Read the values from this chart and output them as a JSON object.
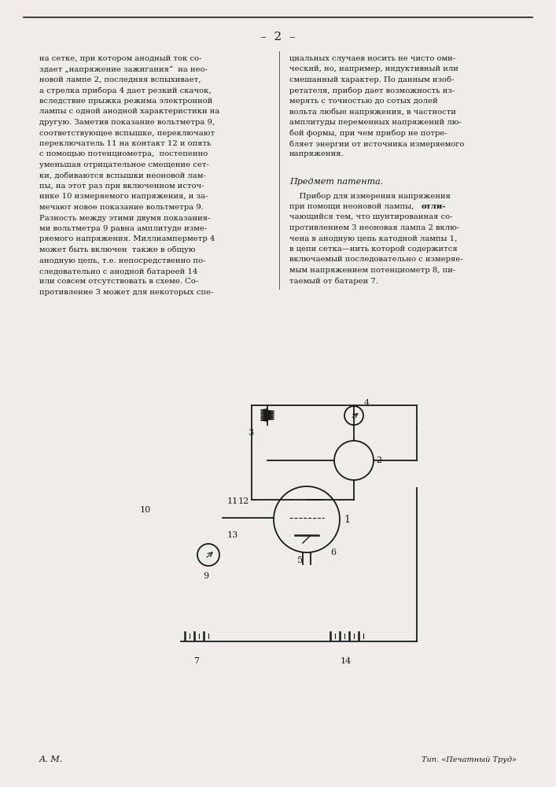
{
  "page_number": "2",
  "background_color": "#f0ede8",
  "text_color": "#1a1a1a",
  "left_column_text": [
    "на сетке, при котором анодный ток со-",
    "здает „напряжение зажигания“  на нео-",
    "новой лампе 2, последняя вспыхивает,",
    "а стрелка прибора 4 дает резкий скачок,",
    "вследствие прыжка режима электронной",
    "лампы с одной анодной характеристики на",
    "другую. Заметив показание вольтметра 9,",
    "соответствующее вспышке, переключают",
    "переключатель 11 на контакт 12 и опять",
    "с помощью потенциометра,  постепенно",
    "уменьшая отрицательное смещение сет-",
    "ки, добиваются вспышки неоновой лам-",
    "пы, на этот раз при включенном источ-",
    "нике 10 измеряемого напряжения, и за-",
    "мечают новое показание вольтметра 9.",
    "Разность между этими двумя показания-",
    "ми вольтметра 9 равна амплитуде изме-",
    "ряемого напряжения. Миллиамперметр 4",
    "может быть включен  также в общую",
    "анодную цепь, т.е. непосредственно по-",
    "следовательно с анодной батареей 14",
    "или совсем отсутствовать в схеме. Со-",
    "противление 3 может для некоторых спе-"
  ],
  "right_column_text": [
    "циальных случаев носить не чисто оми-",
    "ческий, но, например, индуктивный или",
    "смешанный характер. По данным изоб-",
    "ретателя, прибор дает возможность из-",
    "мерять с точностью до сотых долей",
    "вольта любые напряжения, в частности",
    "амплитуды переменных напряжений лю-",
    "бой формы, при чем прибор не потре-",
    "бляет энергии от источника измеряемого",
    "напряжения."
  ],
  "patent_subject_title": "Предмет патента.",
  "patent_subject_text": [
    "    Прибор для измерения напряжения",
    "при помощи неоновой лампы, отли-",
    "чающийся тем, что шунтированная со-",
    "противлением 3 неоновая лампа 2 вклю-",
    "чена в анодную цепь катодной лампы 1,",
    "в цепи сетка—нить которой содержится",
    "включаемый последовательно с измеряе-",
    "мым напряжением потенциометр 8, пи-",
    "таемый от батареи 7."
  ],
  "footer_left": "А. М.",
  "footer_right": "Тип. «Печатный Труд»"
}
